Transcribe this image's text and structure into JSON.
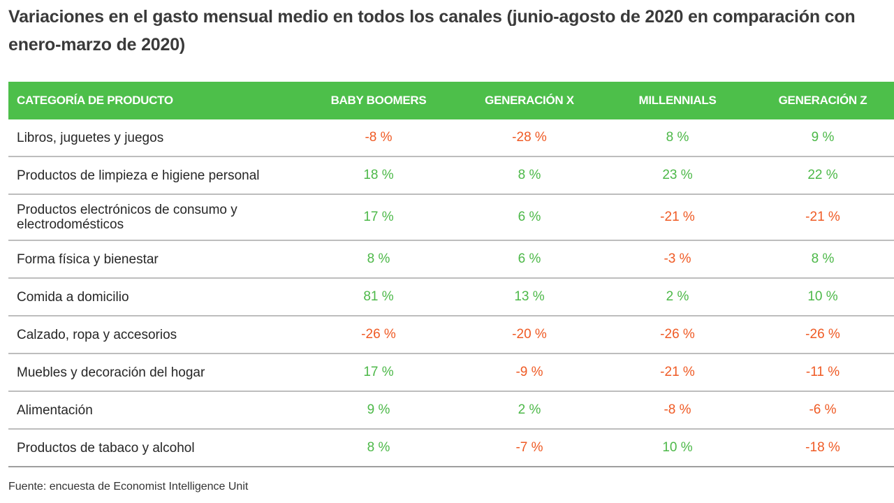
{
  "title": "Variaciones en el gasto mensual medio en todos los canales (junio-agosto de 2020 en comparación con enero-marzo de 2020)",
  "source": "Fuente: encuesta de Economist Intelligence Unit",
  "colors": {
    "header_bg": "#4dbf4a",
    "positive": "#4cb848",
    "negative": "#ef5a24"
  },
  "chart_data": {
    "type": "table",
    "title": "Variaciones en el gasto mensual medio en todos los canales (junio-agosto de 2020 en comparación con enero-marzo de 2020)",
    "columns": [
      "CATEGORÍA DE PRODUCTO",
      "BABY BOOMERS",
      "GENERACIÓN X",
      "MILLENNIALS",
      "GENERACIÓN Z"
    ],
    "rows": [
      {
        "category": "Libros, juguetes y juegos",
        "values": [
          -8,
          -28,
          8,
          9
        ],
        "display": [
          "-8 %",
          "-28 %",
          "8 %",
          "9 %"
        ]
      },
      {
        "category": "Productos de limpieza e higiene personal",
        "values": [
          18,
          8,
          23,
          22
        ],
        "display": [
          "18 %",
          "8 %",
          "23 %",
          "22 %"
        ]
      },
      {
        "category": "Productos electrónicos de consumo y electrodomésticos",
        "values": [
          17,
          6,
          -21,
          -21
        ],
        "display": [
          "17 %",
          "6 %",
          "-21 %",
          "-21 %"
        ]
      },
      {
        "category": "Forma física y bienestar",
        "values": [
          8,
          6,
          -3,
          8
        ],
        "display": [
          "8 %",
          "6 %",
          "-3 %",
          "8 %"
        ]
      },
      {
        "category": "Comida a domicilio",
        "values": [
          81,
          13,
          2,
          10
        ],
        "display": [
          "81 %",
          "13 %",
          "2 %",
          "10 %"
        ]
      },
      {
        "category": "Calzado, ropa y accesorios",
        "values": [
          -26,
          -20,
          -26,
          -26
        ],
        "display": [
          "-26 %",
          "-20 %",
          "-26 %",
          "-26 %"
        ]
      },
      {
        "category": "Muebles y decoración del hogar",
        "values": [
          17,
          -9,
          -21,
          -11
        ],
        "display": [
          "17 %",
          "-9 %",
          "-21 %",
          "-11 %"
        ]
      },
      {
        "category": "Alimentación",
        "values": [
          9,
          2,
          -8,
          -6
        ],
        "display": [
          "9 %",
          "2 %",
          "-8 %",
          "-6 %"
        ]
      },
      {
        "category": "Productos de tabaco y alcohol",
        "values": [
          8,
          -7,
          10,
          -18
        ],
        "display": [
          "8 %",
          "-7 %",
          "10 %",
          "-18 %"
        ]
      }
    ],
    "source": "Fuente: encuesta de Economist Intelligence Unit"
  }
}
